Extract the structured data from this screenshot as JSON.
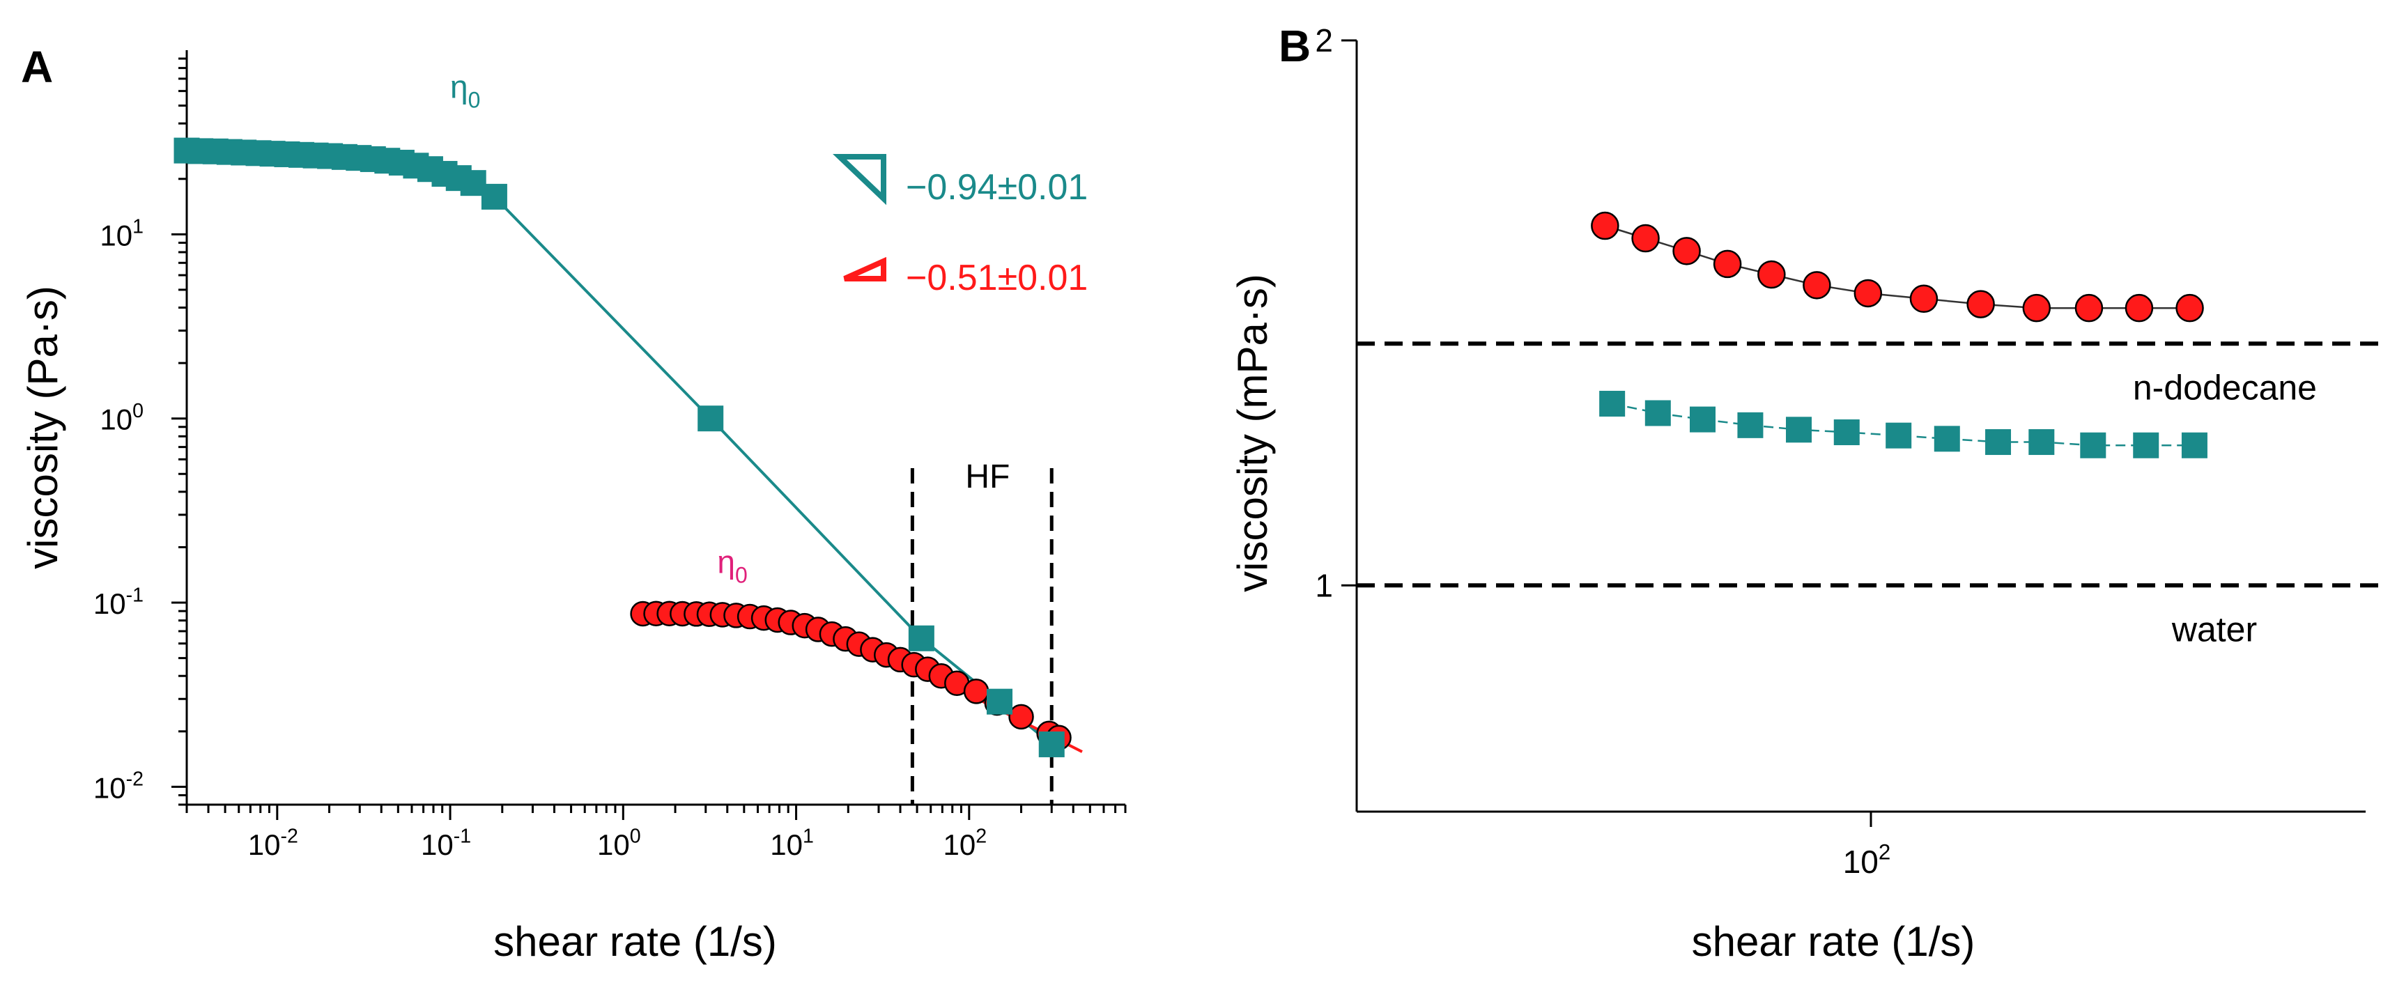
{
  "colors": {
    "teal": "#1a8a8a",
    "red": "#ff1a1a",
    "eta_pink": "#e0207a",
    "axis": "#000000",
    "dashed": "#000000"
  },
  "chart_data": [
    {
      "panel_label": "A",
      "type": "scatter",
      "xscale": "log",
      "yscale": "log",
      "xlabel": "shear rate (1/s)",
      "ylabel": "viscosity (Pa·s)",
      "xlim": [
        0.003,
        800
      ],
      "ylim": [
        0.008,
        100
      ],
      "x_ticks": [
        {
          "value": 0.01,
          "base": "10",
          "exp": "-2"
        },
        {
          "value": 0.1,
          "base": "10",
          "exp": "-1"
        },
        {
          "value": 1,
          "base": "10",
          "exp": "0"
        },
        {
          "value": 10,
          "base": "10",
          "exp": "1"
        },
        {
          "value": 100,
          "base": "10",
          "exp": "2"
        }
      ],
      "y_ticks": [
        {
          "value": 0.01,
          "base": "10",
          "exp": "-2"
        },
        {
          "value": 0.1,
          "base": "10",
          "exp": "-1"
        },
        {
          "value": 1,
          "base": "10",
          "exp": "0"
        },
        {
          "value": 10,
          "base": "10",
          "exp": "1"
        }
      ],
      "series": [
        {
          "name": "teal squares",
          "color_key": "teal",
          "marker": "square",
          "points": [
            {
              "x": 0.003,
              "y": 28.5
            },
            {
              "x": 0.0036,
              "y": 28.3
            },
            {
              "x": 0.0044,
              "y": 28.2
            },
            {
              "x": 0.0053,
              "y": 28.0
            },
            {
              "x": 0.0064,
              "y": 27.8
            },
            {
              "x": 0.0078,
              "y": 27.6
            },
            {
              "x": 0.0094,
              "y": 27.4
            },
            {
              "x": 0.0114,
              "y": 27.2
            },
            {
              "x": 0.0138,
              "y": 27.0
            },
            {
              "x": 0.0167,
              "y": 26.8
            },
            {
              "x": 0.0202,
              "y": 26.6
            },
            {
              "x": 0.0245,
              "y": 26.3
            },
            {
              "x": 0.0296,
              "y": 26.0
            },
            {
              "x": 0.0358,
              "y": 25.6
            },
            {
              "x": 0.0433,
              "y": 25.1
            },
            {
              "x": 0.0524,
              "y": 24.5
            },
            {
              "x": 0.0634,
              "y": 23.6
            },
            {
              "x": 0.0767,
              "y": 22.6
            },
            {
              "x": 0.0928,
              "y": 21.3
            },
            {
              "x": 0.112,
              "y": 20.2
            },
            {
              "x": 0.136,
              "y": 19.0
            },
            {
              "x": 0.18,
              "y": 16.0
            },
            {
              "x": 3.2,
              "y": 1.0
            },
            {
              "x": 53,
              "y": 0.064
            },
            {
              "x": 150,
              "y": 0.029
            },
            {
              "x": 300,
              "y": 0.017
            }
          ]
        },
        {
          "name": "red circles",
          "color_key": "red",
          "marker": "circle",
          "points": [
            {
              "x": 1.3,
              "y": 0.087
            },
            {
              "x": 1.55,
              "y": 0.0872
            },
            {
              "x": 1.85,
              "y": 0.0872
            },
            {
              "x": 2.2,
              "y": 0.087
            },
            {
              "x": 2.65,
              "y": 0.0868
            },
            {
              "x": 3.15,
              "y": 0.0865
            },
            {
              "x": 3.75,
              "y": 0.086
            },
            {
              "x": 4.5,
              "y": 0.0852
            },
            {
              "x": 5.4,
              "y": 0.084
            },
            {
              "x": 6.5,
              "y": 0.0825
            },
            {
              "x": 7.8,
              "y": 0.0805
            },
            {
              "x": 9.3,
              "y": 0.078
            },
            {
              "x": 11.2,
              "y": 0.075
            },
            {
              "x": 13.4,
              "y": 0.0715
            },
            {
              "x": 16.1,
              "y": 0.0675
            },
            {
              "x": 19.3,
              "y": 0.0635
            },
            {
              "x": 23.1,
              "y": 0.0595
            },
            {
              "x": 27.7,
              "y": 0.0555
            },
            {
              "x": 33.3,
              "y": 0.052
            },
            {
              "x": 40,
              "y": 0.049
            },
            {
              "x": 48,
              "y": 0.046
            },
            {
              "x": 57.6,
              "y": 0.0435
            },
            {
              "x": 69,
              "y": 0.04
            },
            {
              "x": 85,
              "y": 0.0365
            },
            {
              "x": 110,
              "y": 0.033
            },
            {
              "x": 145,
              "y": 0.0285
            },
            {
              "x": 200,
              "y": 0.024
            },
            {
              "x": 290,
              "y": 0.0195
            },
            {
              "x": 330,
              "y": 0.0185
            }
          ]
        }
      ],
      "fit_lines": [
        {
          "color_key": "teal",
          "from": {
            "x": 0.18,
            "y": 16.0
          },
          "to": {
            "x": 300,
            "y": 0.017
          }
        },
        {
          "color_key": "red",
          "from": {
            "x": 40,
            "y": 0.049
          },
          "to": {
            "x": 450,
            "y": 0.0155
          }
        }
      ],
      "region": {
        "label": "HF",
        "x_from": 47,
        "x_to": 300
      },
      "annotations": [
        {
          "text": "η",
          "sub": "0",
          "color_key": "teal",
          "x": 0.1,
          "y": 55
        },
        {
          "text": "η",
          "sub": "0",
          "color_key": "eta_pink",
          "x": 3.5,
          "y": 0.145
        }
      ],
      "slopes": [
        {
          "label": "−0.94±0.01",
          "color_key": "teal"
        },
        {
          "label": "−0.51±0.01",
          "color_key": "red"
        }
      ]
    },
    {
      "panel_label": "B",
      "type": "scatter",
      "xscale": "log",
      "yscale": "log",
      "xlabel": "shear rate (1/s)",
      "ylabel": "viscosity (mPa·s)",
      "xlim": [
        17,
        550
      ],
      "ylim": [
        0.75,
        2
      ],
      "x_ticks": [
        {
          "value": 100,
          "base": "10",
          "exp": "2"
        }
      ],
      "y_ticks": [
        {
          "value": 1,
          "label": "1"
        },
        {
          "value": 2,
          "label": "2"
        }
      ],
      "series": [
        {
          "name": "red circles",
          "color_key": "red",
          "marker": "circle",
          "points": [
            {
              "x": 40,
              "y": 1.58
            },
            {
              "x": 46,
              "y": 1.555
            },
            {
              "x": 53,
              "y": 1.53
            },
            {
              "x": 61,
              "y": 1.505
            },
            {
              "x": 71,
              "y": 1.485
            },
            {
              "x": 83,
              "y": 1.465
            },
            {
              "x": 99,
              "y": 1.45
            },
            {
              "x": 120,
              "y": 1.44
            },
            {
              "x": 146,
              "y": 1.43
            },
            {
              "x": 177,
              "y": 1.423
            },
            {
              "x": 212,
              "y": 1.423
            },
            {
              "x": 252,
              "y": 1.423
            },
            {
              "x": 300,
              "y": 1.423
            }
          ]
        },
        {
          "name": "teal squares",
          "color_key": "teal",
          "marker": "square",
          "points": [
            {
              "x": 41,
              "y": 1.26
            },
            {
              "x": 48,
              "y": 1.245
            },
            {
              "x": 56,
              "y": 1.235
            },
            {
              "x": 66,
              "y": 1.226
            },
            {
              "x": 78,
              "y": 1.219
            },
            {
              "x": 92,
              "y": 1.215
            },
            {
              "x": 110,
              "y": 1.21
            },
            {
              "x": 130,
              "y": 1.205
            },
            {
              "x": 155,
              "y": 1.2
            },
            {
              "x": 180,
              "y": 1.2
            },
            {
              "x": 215,
              "y": 1.195
            },
            {
              "x": 258,
              "y": 1.195
            },
            {
              "x": 305,
              "y": 1.195
            }
          ]
        }
      ],
      "reference_lines": [
        {
          "label": "n-dodecane",
          "y": 1.36
        },
        {
          "label": "water",
          "y": 1.0
        }
      ]
    }
  ]
}
